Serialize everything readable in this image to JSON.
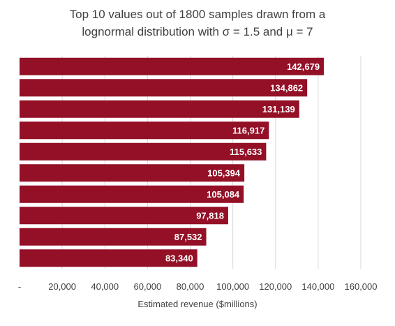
{
  "chart_data": {
    "type": "bar",
    "orientation": "horizontal",
    "title_line1": "Top 10 values out of 1800 samples drawn from a",
    "title_line2": "lognormal distribution with σ = 1.5 and μ = 7",
    "xlabel": "Estimated revenue ($millions)",
    "ylabel": "",
    "xlim": [
      0,
      160000
    ],
    "x_ticks": [
      0,
      20000,
      40000,
      60000,
      80000,
      100000,
      120000,
      140000,
      160000
    ],
    "x_tick_labels": [
      "-",
      "20,000",
      "40,000",
      "60,000",
      "80,000",
      "100,000",
      "120,000",
      "140,000",
      "160,000"
    ],
    "values": [
      142679,
      134862,
      131139,
      116917,
      115633,
      105394,
      105084,
      97818,
      87532,
      83340
    ],
    "value_labels": [
      "142,679",
      "134,862",
      "131,139",
      "116,917",
      "115,633",
      "105,394",
      "105,084",
      "97,818",
      "87,532",
      "83,340"
    ],
    "grid": true,
    "legend": "none",
    "bar_color": "#931027",
    "grid_color": "#d9d9d9",
    "text_color": "#404040"
  }
}
